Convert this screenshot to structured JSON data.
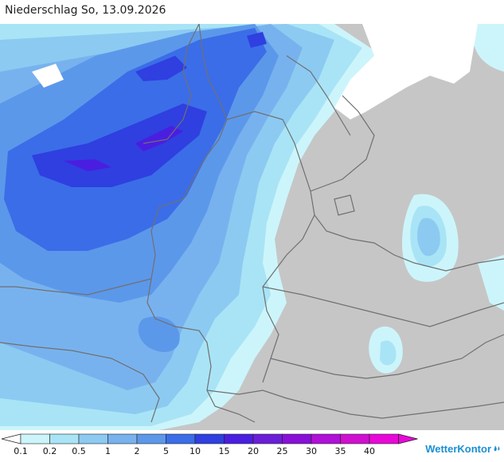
{
  "title": "Niederschlag So, 13.09.2026",
  "brand": "WetterKontor",
  "legend": {
    "labels": [
      "0.1",
      "0.2",
      "0.5",
      "1",
      "2",
      "5",
      "10",
      "15",
      "20",
      "25",
      "30",
      "35",
      "40"
    ],
    "colors": [
      "#ccf5fb",
      "#a9e4f6",
      "#8ccaf2",
      "#78b2ee",
      "#5c98ea",
      "#3b6de8",
      "#2f3fe0",
      "#4a1ee0",
      "#6a1ed8",
      "#8810d8",
      "#b010d8",
      "#d010d0",
      "#e808d8"
    ]
  },
  "colors": {
    "land": "#c6c6c6",
    "water": "#ffffff",
    "border": "#707070"
  }
}
